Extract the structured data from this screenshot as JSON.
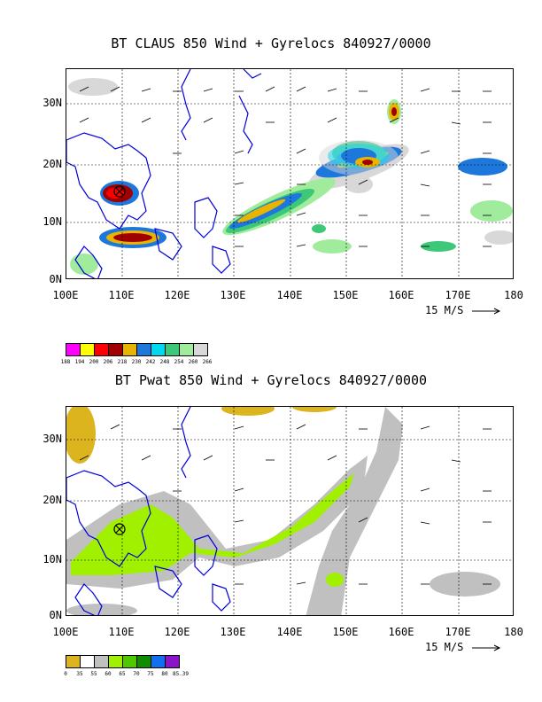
{
  "panel_top": {
    "title": "BT CLAUS 850 Wind + Gyrelocs 840927/0000",
    "y_labels": [
      "30N",
      "20N",
      "10N",
      "0N"
    ],
    "x_labels": [
      "100E",
      "110E",
      "120E",
      "130E",
      "140E",
      "150E",
      "160E",
      "170E",
      "180"
    ],
    "vector_scale": "15 M/S",
    "colorbar_colors": [
      "#ff00ff",
      "#ffff00",
      "#ff0000",
      "#a00000",
      "#e8b400",
      "#1e78dc",
      "#00d8f0",
      "#3cc878",
      "#a0ec9c",
      "#d8d8d8"
    ],
    "colorbar_labels": [
      "188",
      "194",
      "200",
      "206",
      "218",
      "230",
      "242",
      "248",
      "254",
      "260",
      "266"
    ]
  },
  "panel_bottom": {
    "title": "BT Pwat 850 Wind + Gyrelocs 840927/0000",
    "y_labels": [
      "30N",
      "20N",
      "10N",
      "0N"
    ],
    "x_labels": [
      "100E",
      "110E",
      "120E",
      "130E",
      "140E",
      "150E",
      "160E",
      "170E",
      "180"
    ],
    "vector_scale": "15 M/S",
    "colorbar_colors": [
      "#dcb41e",
      "#ffffff",
      "#c0c0c0",
      "#a0f000",
      "#50c800",
      "#108c00",
      "#1070f0",
      "#8c14c8"
    ],
    "colorbar_labels": [
      "0",
      "35",
      "55",
      "60",
      "65",
      "70",
      "75",
      "80",
      "85.39"
    ]
  }
}
